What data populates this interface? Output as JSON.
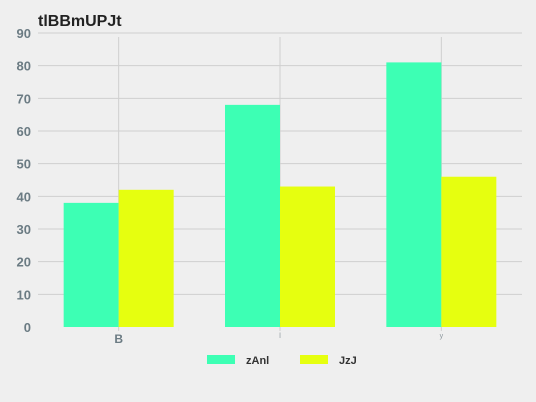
{
  "chart_data": {
    "type": "bar",
    "title": "tlBBmUPJt",
    "categories": [
      "B",
      "l",
      "y"
    ],
    "series": [
      {
        "name": "zAnl",
        "values": [
          38,
          68,
          81
        ],
        "color": "#3dffb4"
      },
      {
        "name": "JzJ",
        "values": [
          42,
          43,
          46
        ],
        "color": "#e6ff0f"
      }
    ],
    "ylim": [
      0,
      90
    ],
    "yticks": [
      "0",
      "10",
      "20",
      "30",
      "40",
      "50",
      "60",
      "70",
      "80",
      "90"
    ],
    "grid": true,
    "legend_position": "bottom"
  }
}
